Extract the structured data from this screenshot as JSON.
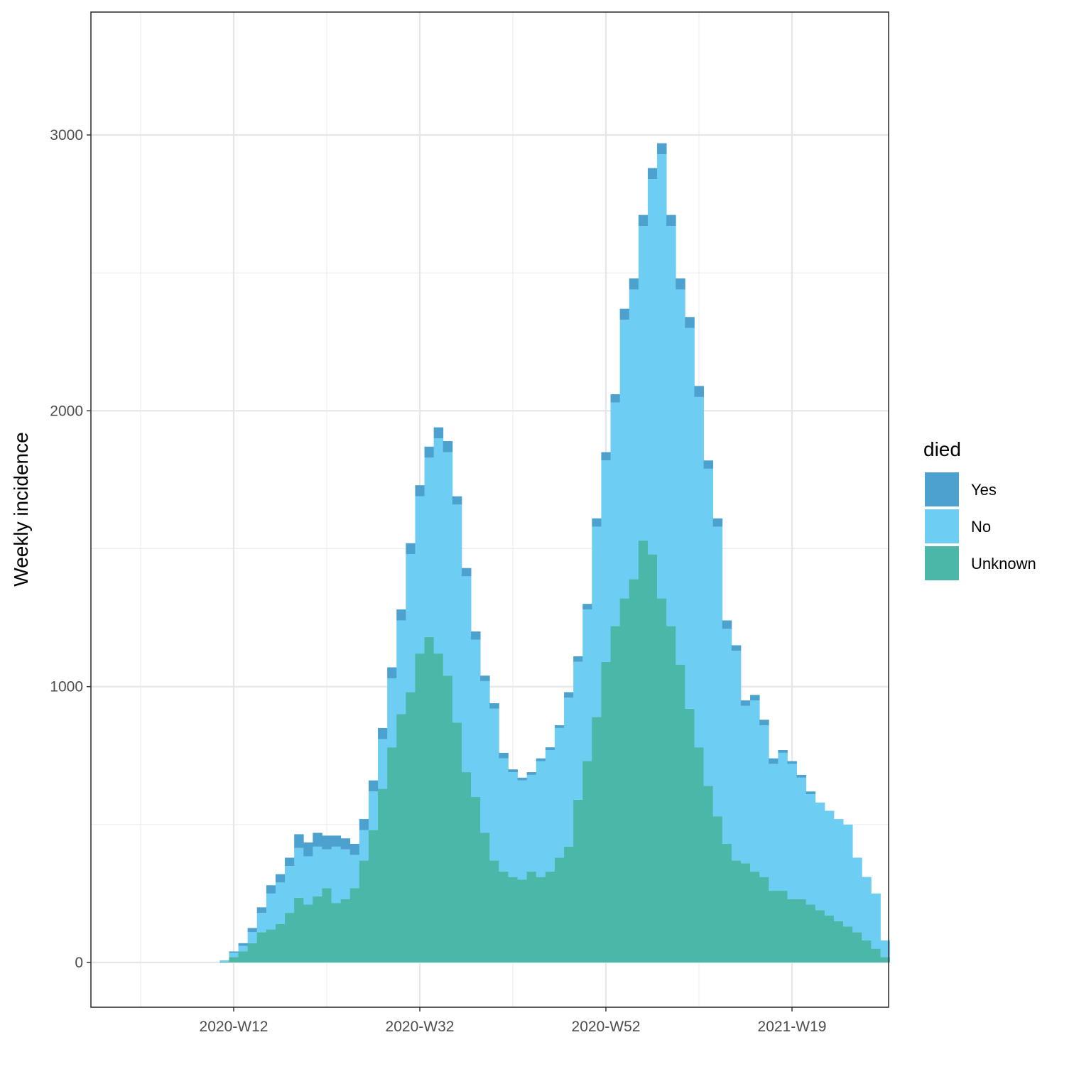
{
  "chart_data": {
    "type": "bar",
    "stacked": true,
    "ylabel": "Weekly incidence",
    "xlabel": "",
    "y_ticks": [
      0,
      1000,
      2000,
      3000
    ],
    "ylim": [
      -160,
      3500
    ],
    "x_tick_labels": [
      "2020-W12",
      "2020-W32",
      "2020-W52",
      "2021-W19"
    ],
    "x_tick_week_index": [
      12,
      32,
      52,
      72
    ],
    "first_week_index": 10,
    "grid": true,
    "legend": {
      "title": "died",
      "position": "right",
      "entries": [
        "Yes",
        "No",
        "Unknown"
      ]
    },
    "colors": {
      "Yes": "#4da1cf",
      "No": "#6ecdf3",
      "Unknown": "#4bb7a8"
    },
    "series": [
      {
        "name": "Unknown",
        "values": [
          0,
          3,
          20,
          40,
          70,
          110,
          120,
          140,
          180,
          235,
          210,
          240,
          270,
          215,
          230,
          270,
          370,
          480,
          630,
          780,
          900,
          980,
          1120,
          1180,
          1120,
          1040,
          870,
          690,
          600,
          470,
          370,
          330,
          310,
          300,
          330,
          310,
          330,
          380,
          420,
          590,
          730,
          890,
          1090,
          1220,
          1320,
          1390,
          1530,
          1480,
          1320,
          1220,
          1080,
          920,
          780,
          640,
          530,
          430,
          370,
          360,
          330,
          310,
          260,
          260,
          230,
          230,
          210,
          190,
          170,
          150,
          130,
          110,
          80,
          50,
          20
        ]
      },
      {
        "name": "No",
        "values": [
          0,
          5,
          15,
          20,
          40,
          70,
          130,
          150,
          170,
          180,
          175,
          180,
          140,
          205,
          180,
          120,
          110,
          140,
          180,
          250,
          340,
          500,
          570,
          650,
          780,
          810,
          790,
          710,
          570,
          550,
          550,
          410,
          380,
          360,
          350,
          420,
          440,
          470,
          540,
          500,
          550,
          690,
          730,
          810,
          1010,
          1050,
          1140,
          1360,
          1610,
          1450,
          1360,
          1380,
          1270,
          1150,
          1050,
          780,
          760,
          570,
          620,
          550,
          460,
          500,
          490,
          440,
          400,
          390,
          380,
          370,
          370,
          270,
          230,
          200,
          60
        ]
      },
      {
        "name": "Yes",
        "values": [
          0,
          0,
          5,
          10,
          15,
          20,
          30,
          30,
          30,
          50,
          50,
          50,
          50,
          40,
          40,
          40,
          40,
          40,
          40,
          40,
          40,
          40,
          40,
          40,
          40,
          40,
          30,
          30,
          30,
          20,
          20,
          20,
          10,
          10,
          10,
          10,
          10,
          10,
          20,
          20,
          20,
          30,
          30,
          30,
          40,
          40,
          40,
          40,
          40,
          40,
          40,
          40,
          40,
          30,
          30,
          30,
          20,
          20,
          20,
          20,
          20,
          10,
          10,
          10,
          10,
          0,
          0,
          0,
          0,
          0,
          0,
          0,
          0
        ]
      }
    ]
  }
}
